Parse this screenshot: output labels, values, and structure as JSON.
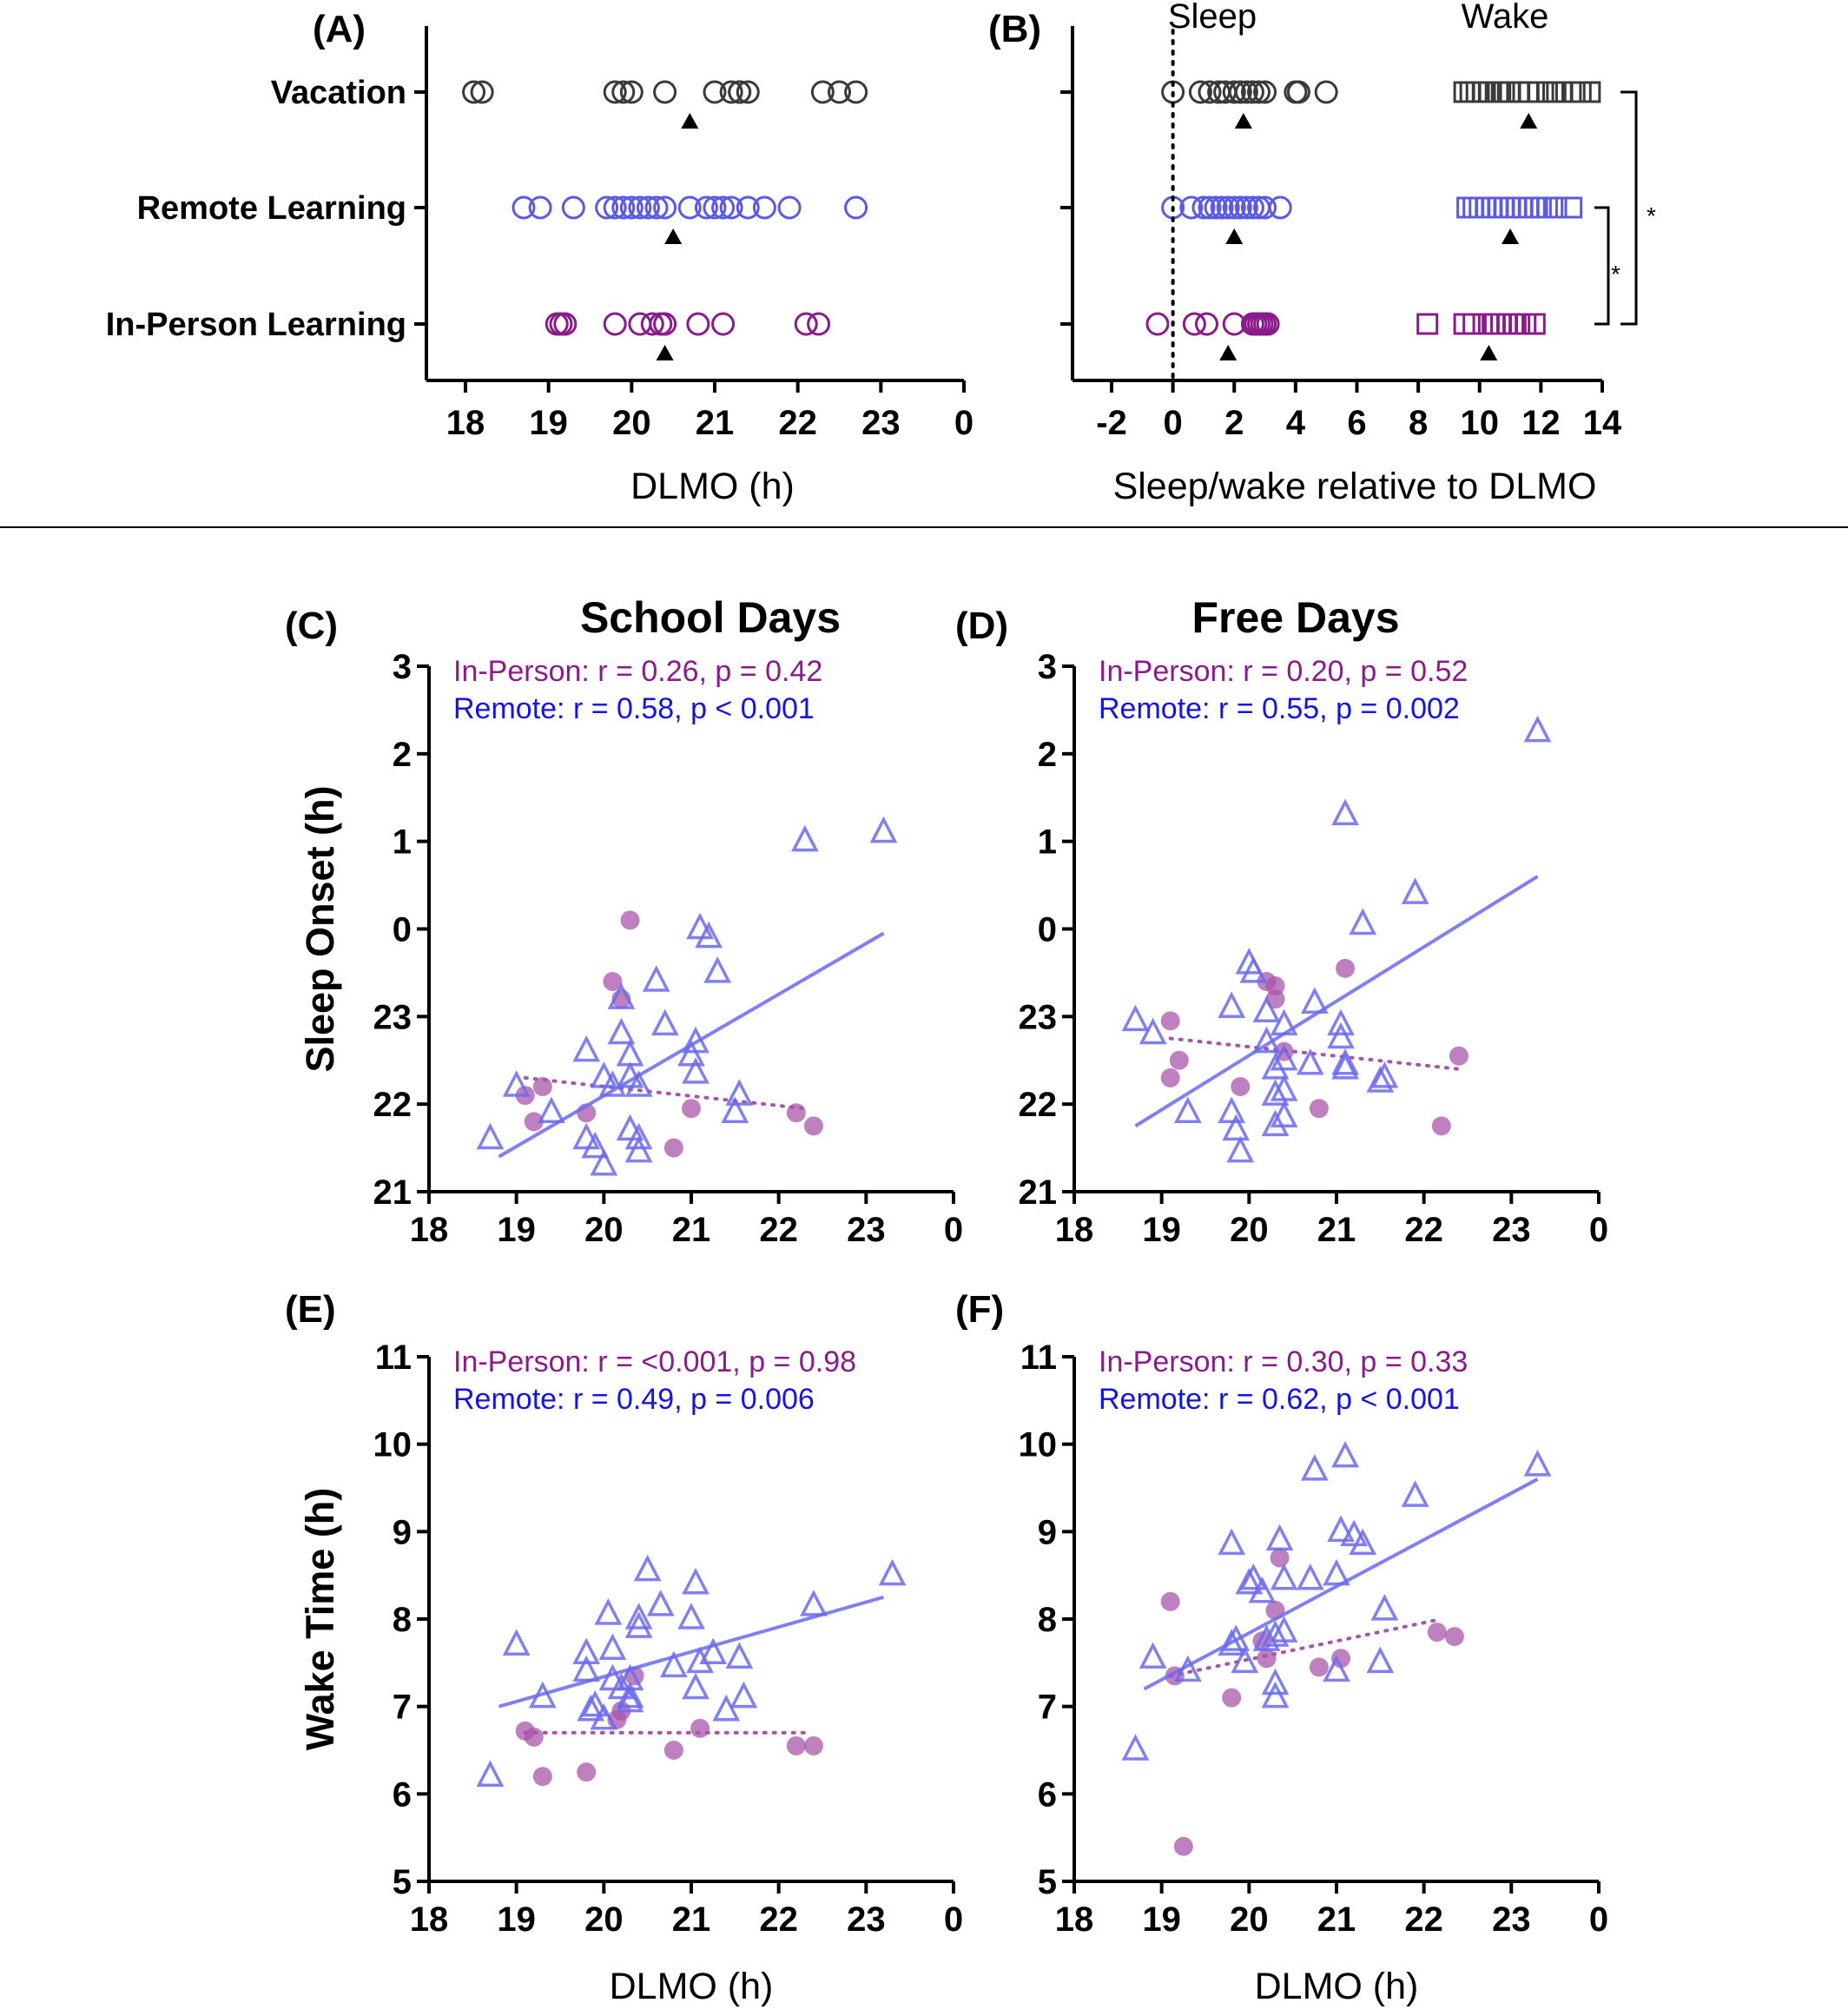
{
  "colors": {
    "vacation": "#3a3a3a",
    "remote": "#5a5ae6",
    "remote_text": "#1414e6",
    "inperson": "#8b1a8b",
    "inperson_fill": "#a855a8",
    "remote_fill": "#6a6af0",
    "axis": "#000000"
  },
  "panels": {
    "A": "(A)",
    "B": "(B)",
    "C": "(C)",
    "D": "(D)",
    "E": "(E)",
    "F": "(F)"
  },
  "column_titles": {
    "school": "School Days",
    "free": "Free Days"
  },
  "chart_data": [
    {
      "id": "A",
      "type": "scatter",
      "xlabel": "DLMO (h)",
      "x_ticks": [
        "18",
        "19",
        "20",
        "21",
        "22",
        "23",
        "0"
      ],
      "xlim": [
        18,
        24
      ],
      "categories": [
        "Vacation",
        "Remote Learning",
        "In-Person Learning"
      ],
      "series": [
        {
          "name": "Vacation",
          "marker": "circle",
          "mean": 20.7,
          "values": [
            18.1,
            18.2,
            19.8,
            19.9,
            20.0,
            20.4,
            21.0,
            21.2,
            21.3,
            21.3,
            21.4,
            22.3,
            22.5,
            22.7
          ]
        },
        {
          "name": "Remote Learning",
          "marker": "circle",
          "mean": 20.5,
          "values": [
            18.7,
            18.9,
            19.3,
            19.7,
            19.8,
            19.9,
            20.0,
            20.1,
            20.2,
            20.3,
            20.4,
            20.7,
            20.9,
            21.0,
            21.1,
            21.2,
            21.4,
            21.6,
            21.9,
            22.7
          ]
        },
        {
          "name": "In-Person Learning",
          "marker": "circle",
          "mean": 20.4,
          "values": [
            19.1,
            19.15,
            19.2,
            19.8,
            20.1,
            20.25,
            20.35,
            20.4,
            20.8,
            21.1,
            22.1,
            22.25
          ]
        }
      ]
    },
    {
      "id": "B",
      "type": "scatter",
      "xlabel": "Sleep/wake relative to DLMO",
      "x_ticks": [
        "-2",
        "0",
        "2",
        "4",
        "6",
        "8",
        "10",
        "12",
        "14"
      ],
      "xlim": [
        -2,
        14
      ],
      "header_labels": [
        "Sleep",
        "Wake"
      ],
      "reference_line_x": 0,
      "significance": [
        "*",
        "*"
      ],
      "categories": [
        "Vacation",
        "Remote Learning",
        "In-Person Learning"
      ],
      "series": [
        {
          "name": "Vacation sleep",
          "marker": "circle",
          "mean": 2.3,
          "values": [
            0.0,
            0.9,
            1.2,
            1.5,
            1.7,
            2.0,
            2.2,
            2.4,
            2.6,
            2.8,
            3.0,
            4.0,
            4.1,
            5.0
          ]
        },
        {
          "name": "Vacation wake",
          "marker": "square",
          "mean": 11.6,
          "values": [
            9.5,
            9.7,
            9.9,
            10.1,
            10.3,
            10.6,
            10.8,
            11.0,
            11.3,
            11.6,
            11.9,
            12.2,
            12.4,
            12.7,
            13.1,
            13.3,
            13.6
          ]
        },
        {
          "name": "Remote sleep",
          "marker": "circle",
          "mean": 2.0,
          "values": [
            0.0,
            0.6,
            1.0,
            1.2,
            1.4,
            1.6,
            1.8,
            2.0,
            2.2,
            2.4,
            2.6,
            2.8,
            3.0,
            3.5
          ]
        },
        {
          "name": "Remote wake",
          "marker": "square",
          "mean": 11.0,
          "values": [
            9.6,
            9.8,
            10.0,
            10.2,
            10.4,
            10.6,
            10.8,
            11.0,
            11.2,
            11.4,
            11.6,
            11.8,
            12.0,
            12.2,
            12.5,
            13.0
          ]
        },
        {
          "name": "In-Person sleep",
          "marker": "circle",
          "mean": 1.8,
          "values": [
            -0.5,
            0.7,
            1.1,
            2.0,
            2.6,
            2.7,
            2.8,
            2.9,
            3.0,
            3.1
          ]
        },
        {
          "name": "In-Person wake",
          "marker": "square",
          "mean": 10.3,
          "values": [
            8.3,
            9.5,
            9.8,
            10.3,
            10.5,
            10.7,
            10.9,
            11.1,
            11.3,
            11.5,
            11.8
          ]
        }
      ]
    },
    {
      "id": "C",
      "type": "scatter",
      "title": "School Days",
      "ylabel": "Sleep Onset (h)",
      "xlim": [
        18,
        24
      ],
      "ylim": [
        21,
        27
      ],
      "x_ticks": [
        "18",
        "19",
        "20",
        "21",
        "22",
        "23",
        "0"
      ],
      "y_ticks": [
        "21",
        "22",
        "23",
        "0",
        "1",
        "2",
        "3"
      ],
      "stats": [
        "In-Person: r = 0.26, p = 0.42",
        "Remote: r = 0.58, p < 0.001"
      ],
      "series": [
        {
          "name": "In-Person",
          "marker": "filled-circle",
          "x": [
            19.1,
            19.2,
            19.3,
            19.8,
            20.1,
            20.2,
            20.3,
            20.8,
            21.0,
            22.2,
            22.4
          ],
          "y": [
            22.1,
            21.8,
            22.2,
            21.9,
            23.4,
            23.2,
            24.1,
            21.5,
            21.95,
            21.9,
            21.75
          ],
          "fit": [
            [
              19.1,
              22.3
            ],
            [
              22.3,
              21.95
            ]
          ]
        },
        {
          "name": "Remote",
          "marker": "triangle",
          "x": [
            18.7,
            19.0,
            19.4,
            19.8,
            19.8,
            19.9,
            20.0,
            20.0,
            20.1,
            20.2,
            20.2,
            20.3,
            20.3,
            20.3,
            20.4,
            20.4,
            20.4,
            20.6,
            20.7,
            21.0,
            21.05,
            21.05,
            21.1,
            21.2,
            21.3,
            21.5,
            21.55,
            22.3,
            23.2
          ],
          "y": [
            21.6,
            22.2,
            21.9,
            22.6,
            21.6,
            21.5,
            22.3,
            21.3,
            22.2,
            23.2,
            22.8,
            22.55,
            22.3,
            21.7,
            22.2,
            21.45,
            21.6,
            23.4,
            22.9,
            22.55,
            22.7,
            22.35,
            24.0,
            23.9,
            23.5,
            21.9,
            22.1,
            25.0,
            25.1
          ],
          "fit": [
            [
              18.8,
              21.4
            ],
            [
              23.2,
              23.95
            ]
          ]
        }
      ]
    },
    {
      "id": "D",
      "type": "scatter",
      "title": "Free Days",
      "xlim": [
        18,
        24
      ],
      "ylim": [
        21,
        27
      ],
      "x_ticks": [
        "18",
        "19",
        "20",
        "21",
        "22",
        "23",
        "0"
      ],
      "y_ticks": [
        "21",
        "22",
        "23",
        "0",
        "1",
        "2",
        "3"
      ],
      "stats": [
        "In-Person: r = 0.20, p = 0.52",
        "Remote: r = 0.55, p = 0.002"
      ],
      "series": [
        {
          "name": "In-Person",
          "marker": "filled-circle",
          "x": [
            19.1,
            19.1,
            19.2,
            19.9,
            20.2,
            20.3,
            20.3,
            20.4,
            20.8,
            21.1,
            22.2,
            22.4
          ],
          "y": [
            22.3,
            22.95,
            22.5,
            22.2,
            23.4,
            23.2,
            23.35,
            22.6,
            21.95,
            23.55,
            21.75,
            22.55
          ],
          "fit": [
            [
              19.1,
              22.75
            ],
            [
              22.4,
              22.4
            ]
          ]
        },
        {
          "name": "Remote",
          "marker": "triangle",
          "x": [
            18.7,
            18.9,
            19.3,
            19.8,
            19.8,
            19.85,
            19.9,
            20.0,
            20.05,
            20.2,
            20.2,
            20.3,
            20.3,
            20.3,
            20.4,
            20.4,
            20.4,
            20.4,
            20.7,
            20.75,
            21.05,
            21.05,
            21.1,
            21.1,
            21.1,
            21.3,
            21.5,
            21.55,
            21.9,
            23.3
          ],
          "y": [
            22.95,
            22.8,
            21.9,
            23.1,
            21.9,
            21.7,
            21.45,
            23.6,
            23.5,
            22.7,
            23.05,
            22.4,
            22.1,
            21.75,
            22.5,
            22.15,
            21.85,
            22.9,
            22.45,
            23.15,
            22.75,
            22.9,
            22.4,
            22.45,
            25.3,
            24.05,
            22.25,
            22.3,
            24.4,
            26.25
          ],
          "fit": [
            [
              18.7,
              21.75
            ],
            [
              23.3,
              24.6
            ]
          ]
        }
      ]
    },
    {
      "id": "E",
      "type": "scatter",
      "ylabel": "Wake Time (h)",
      "xlabel": "DLMO (h)",
      "xlim": [
        18,
        24
      ],
      "ylim": [
        5,
        11
      ],
      "x_ticks": [
        "18",
        "19",
        "20",
        "21",
        "22",
        "23",
        "0"
      ],
      "y_ticks": [
        "5",
        "6",
        "7",
        "8",
        "9",
        "10",
        "11"
      ],
      "stats": [
        "In-Person: r = <0.001, p = 0.98",
        "Remote: r = 0.49, p = 0.006"
      ],
      "series": [
        {
          "name": "In-Person",
          "marker": "filled-circle",
          "x": [
            19.1,
            19.2,
            19.3,
            19.8,
            20.15,
            20.2,
            20.35,
            20.8,
            21.1,
            22.2,
            22.4
          ],
          "y": [
            6.72,
            6.65,
            6.2,
            6.25,
            6.85,
            6.95,
            7.35,
            6.5,
            6.75,
            6.55,
            6.55
          ],
          "fit": [
            [
              19.1,
              6.7
            ],
            [
              22.3,
              6.7
            ]
          ]
        },
        {
          "name": "Remote",
          "marker": "triangle",
          "x": [
            18.7,
            19.0,
            19.3,
            19.8,
            19.8,
            19.85,
            19.9,
            20.0,
            20.05,
            20.1,
            20.1,
            20.2,
            20.3,
            20.3,
            20.3,
            20.4,
            20.4,
            20.5,
            20.65,
            20.8,
            21.0,
            21.05,
            21.05,
            21.1,
            21.25,
            21.4,
            21.55,
            21.6,
            22.4,
            23.3
          ],
          "y": [
            6.2,
            7.7,
            7.1,
            7.6,
            7.4,
            6.95,
            7.0,
            6.85,
            8.05,
            7.65,
            7.3,
            7.2,
            7.1,
            7.3,
            7.05,
            7.9,
            8.0,
            8.55,
            8.15,
            7.45,
            8.0,
            8.4,
            7.2,
            7.5,
            7.6,
            6.95,
            7.55,
            7.1,
            8.15,
            8.5
          ],
          "fit": [
            [
              18.8,
              7.0
            ],
            [
              23.2,
              8.25
            ]
          ]
        }
      ]
    },
    {
      "id": "F",
      "type": "scatter",
      "xlabel": "DLMO (h)",
      "xlim": [
        18,
        24
      ],
      "ylim": [
        5,
        11
      ],
      "x_ticks": [
        "18",
        "19",
        "20",
        "21",
        "22",
        "23",
        "0"
      ],
      "y_ticks": [
        "5",
        "6",
        "7",
        "8",
        "9",
        "10",
        "11"
      ],
      "stats": [
        "In-Person: r = 0.30, p = 0.33",
        "Remote: r = 0.62, p < 0.001"
      ],
      "series": [
        {
          "name": "In-Person",
          "marker": "filled-circle",
          "x": [
            19.1,
            19.15,
            19.25,
            19.8,
            20.15,
            20.2,
            20.3,
            20.35,
            20.8,
            21.05,
            22.15,
            22.35
          ],
          "y": [
            8.2,
            7.35,
            5.4,
            7.1,
            7.75,
            7.55,
            8.1,
            8.7,
            7.45,
            7.55,
            7.85,
            7.8
          ],
          "fit": [
            [
              19.1,
              7.35
            ],
            [
              22.2,
              8.0
            ]
          ]
        },
        {
          "name": "Remote",
          "marker": "triangle",
          "x": [
            18.7,
            18.9,
            19.3,
            19.8,
            19.8,
            19.85,
            19.95,
            20.0,
            20.05,
            20.15,
            20.2,
            20.3,
            20.3,
            20.3,
            20.35,
            20.4,
            20.4,
            20.7,
            20.75,
            21.0,
            21.0,
            21.05,
            21.1,
            21.2,
            21.3,
            21.5,
            21.55,
            21.9,
            23.3
          ],
          "y": [
            6.5,
            7.55,
            7.4,
            8.85,
            7.7,
            7.75,
            7.5,
            8.4,
            8.45,
            8.3,
            7.75,
            7.1,
            7.25,
            7.8,
            8.9,
            8.45,
            7.85,
            8.45,
            9.7,
            7.4,
            8.5,
            9.0,
            9.85,
            8.95,
            8.85,
            7.5,
            8.1,
            9.4,
            9.75
          ],
          "fit": [
            [
              18.8,
              7.2
            ],
            [
              23.3,
              9.6
            ]
          ]
        }
      ]
    }
  ]
}
